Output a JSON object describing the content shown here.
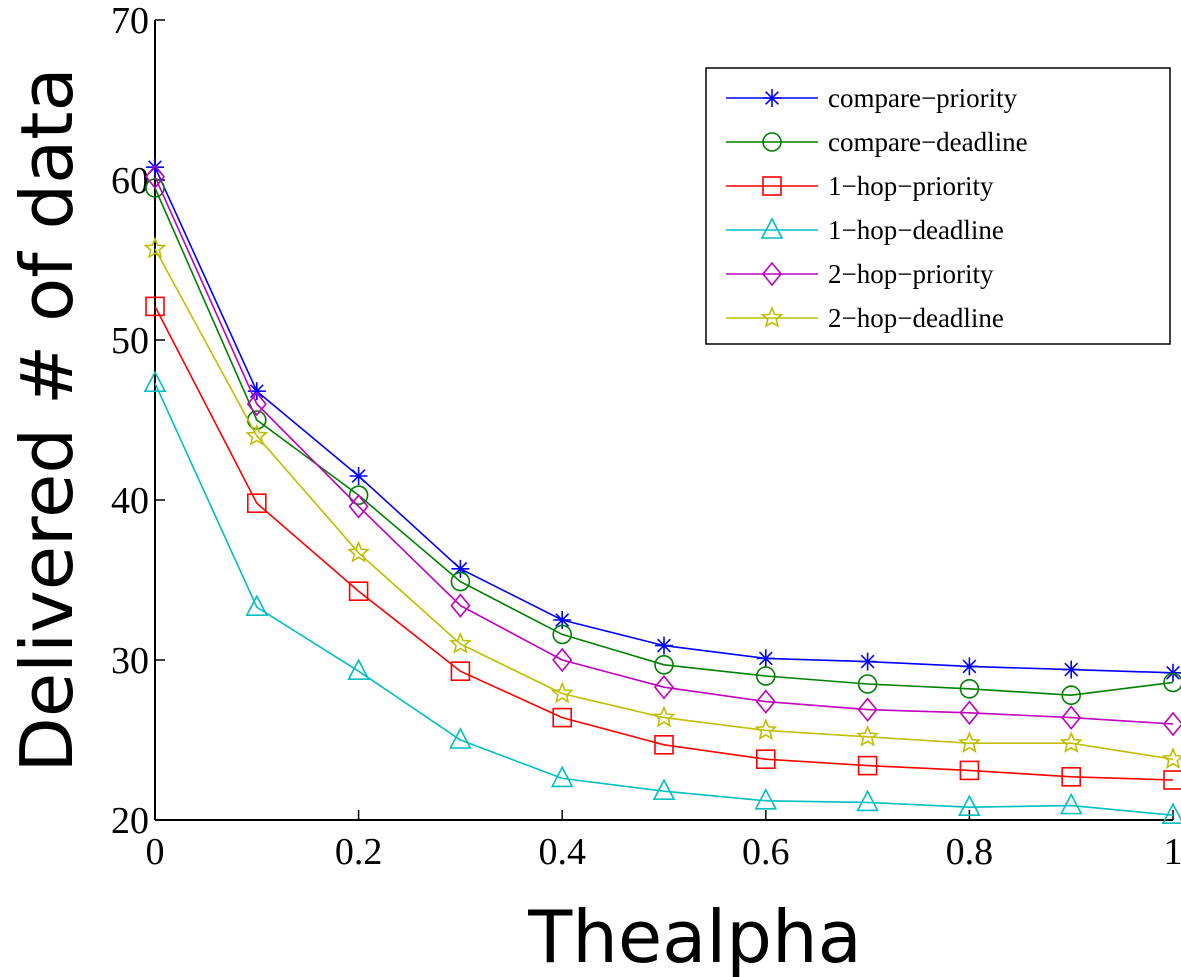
{
  "chart_data": {
    "type": "line",
    "title": "",
    "xlabel": "Thealpha",
    "ylabel": "Delivered # of data",
    "xlim": [
      0,
      1
    ],
    "ylim": [
      20,
      70
    ],
    "xticks": [
      "0",
      "0.2",
      "0.4",
      "0.6",
      "0.8",
      "1"
    ],
    "yticks": [
      "20",
      "30",
      "40",
      "50",
      "60",
      "70"
    ],
    "grid": false,
    "legend_position": "top-right",
    "x": [
      0,
      0.1,
      0.2,
      0.3,
      0.4,
      0.5,
      0.6,
      0.7,
      0.8,
      0.9,
      1.0
    ],
    "series": [
      {
        "name": "compare−priority",
        "color": "#0000ff",
        "marker": "asterisk",
        "values": [
          60.8,
          46.8,
          41.5,
          35.7,
          32.5,
          30.9,
          30.1,
          29.9,
          29.6,
          29.4,
          29.2
        ]
      },
      {
        "name": "compare−deadline",
        "color": "#008000",
        "marker": "circle",
        "values": [
          59.5,
          45.0,
          40.3,
          34.9,
          31.6,
          29.7,
          29.0,
          28.5,
          28.2,
          27.8,
          28.6
        ]
      },
      {
        "name": "1−hop−priority",
        "color": "#ff0000",
        "marker": "square",
        "values": [
          52.1,
          39.8,
          34.3,
          29.3,
          26.4,
          24.7,
          23.8,
          23.4,
          23.1,
          22.7,
          22.5
        ]
      },
      {
        "name": "1−hop−deadline",
        "color": "#00bfbf",
        "marker": "triangle",
        "values": [
          47.3,
          33.3,
          29.3,
          25.0,
          22.6,
          21.8,
          21.2,
          21.1,
          20.8,
          20.9,
          20.3
        ]
      },
      {
        "name": "2−hop−priority",
        "color": "#bf00bf",
        "marker": "diamond",
        "values": [
          60.2,
          46.0,
          39.6,
          33.4,
          30.0,
          28.3,
          27.4,
          26.9,
          26.7,
          26.4,
          26.0
        ]
      },
      {
        "name": "2−hop−deadline",
        "color": "#bfbf00",
        "marker": "star",
        "values": [
          55.7,
          44.0,
          36.7,
          31.0,
          27.9,
          26.4,
          25.6,
          25.2,
          24.8,
          24.8,
          23.8
        ]
      }
    ]
  }
}
